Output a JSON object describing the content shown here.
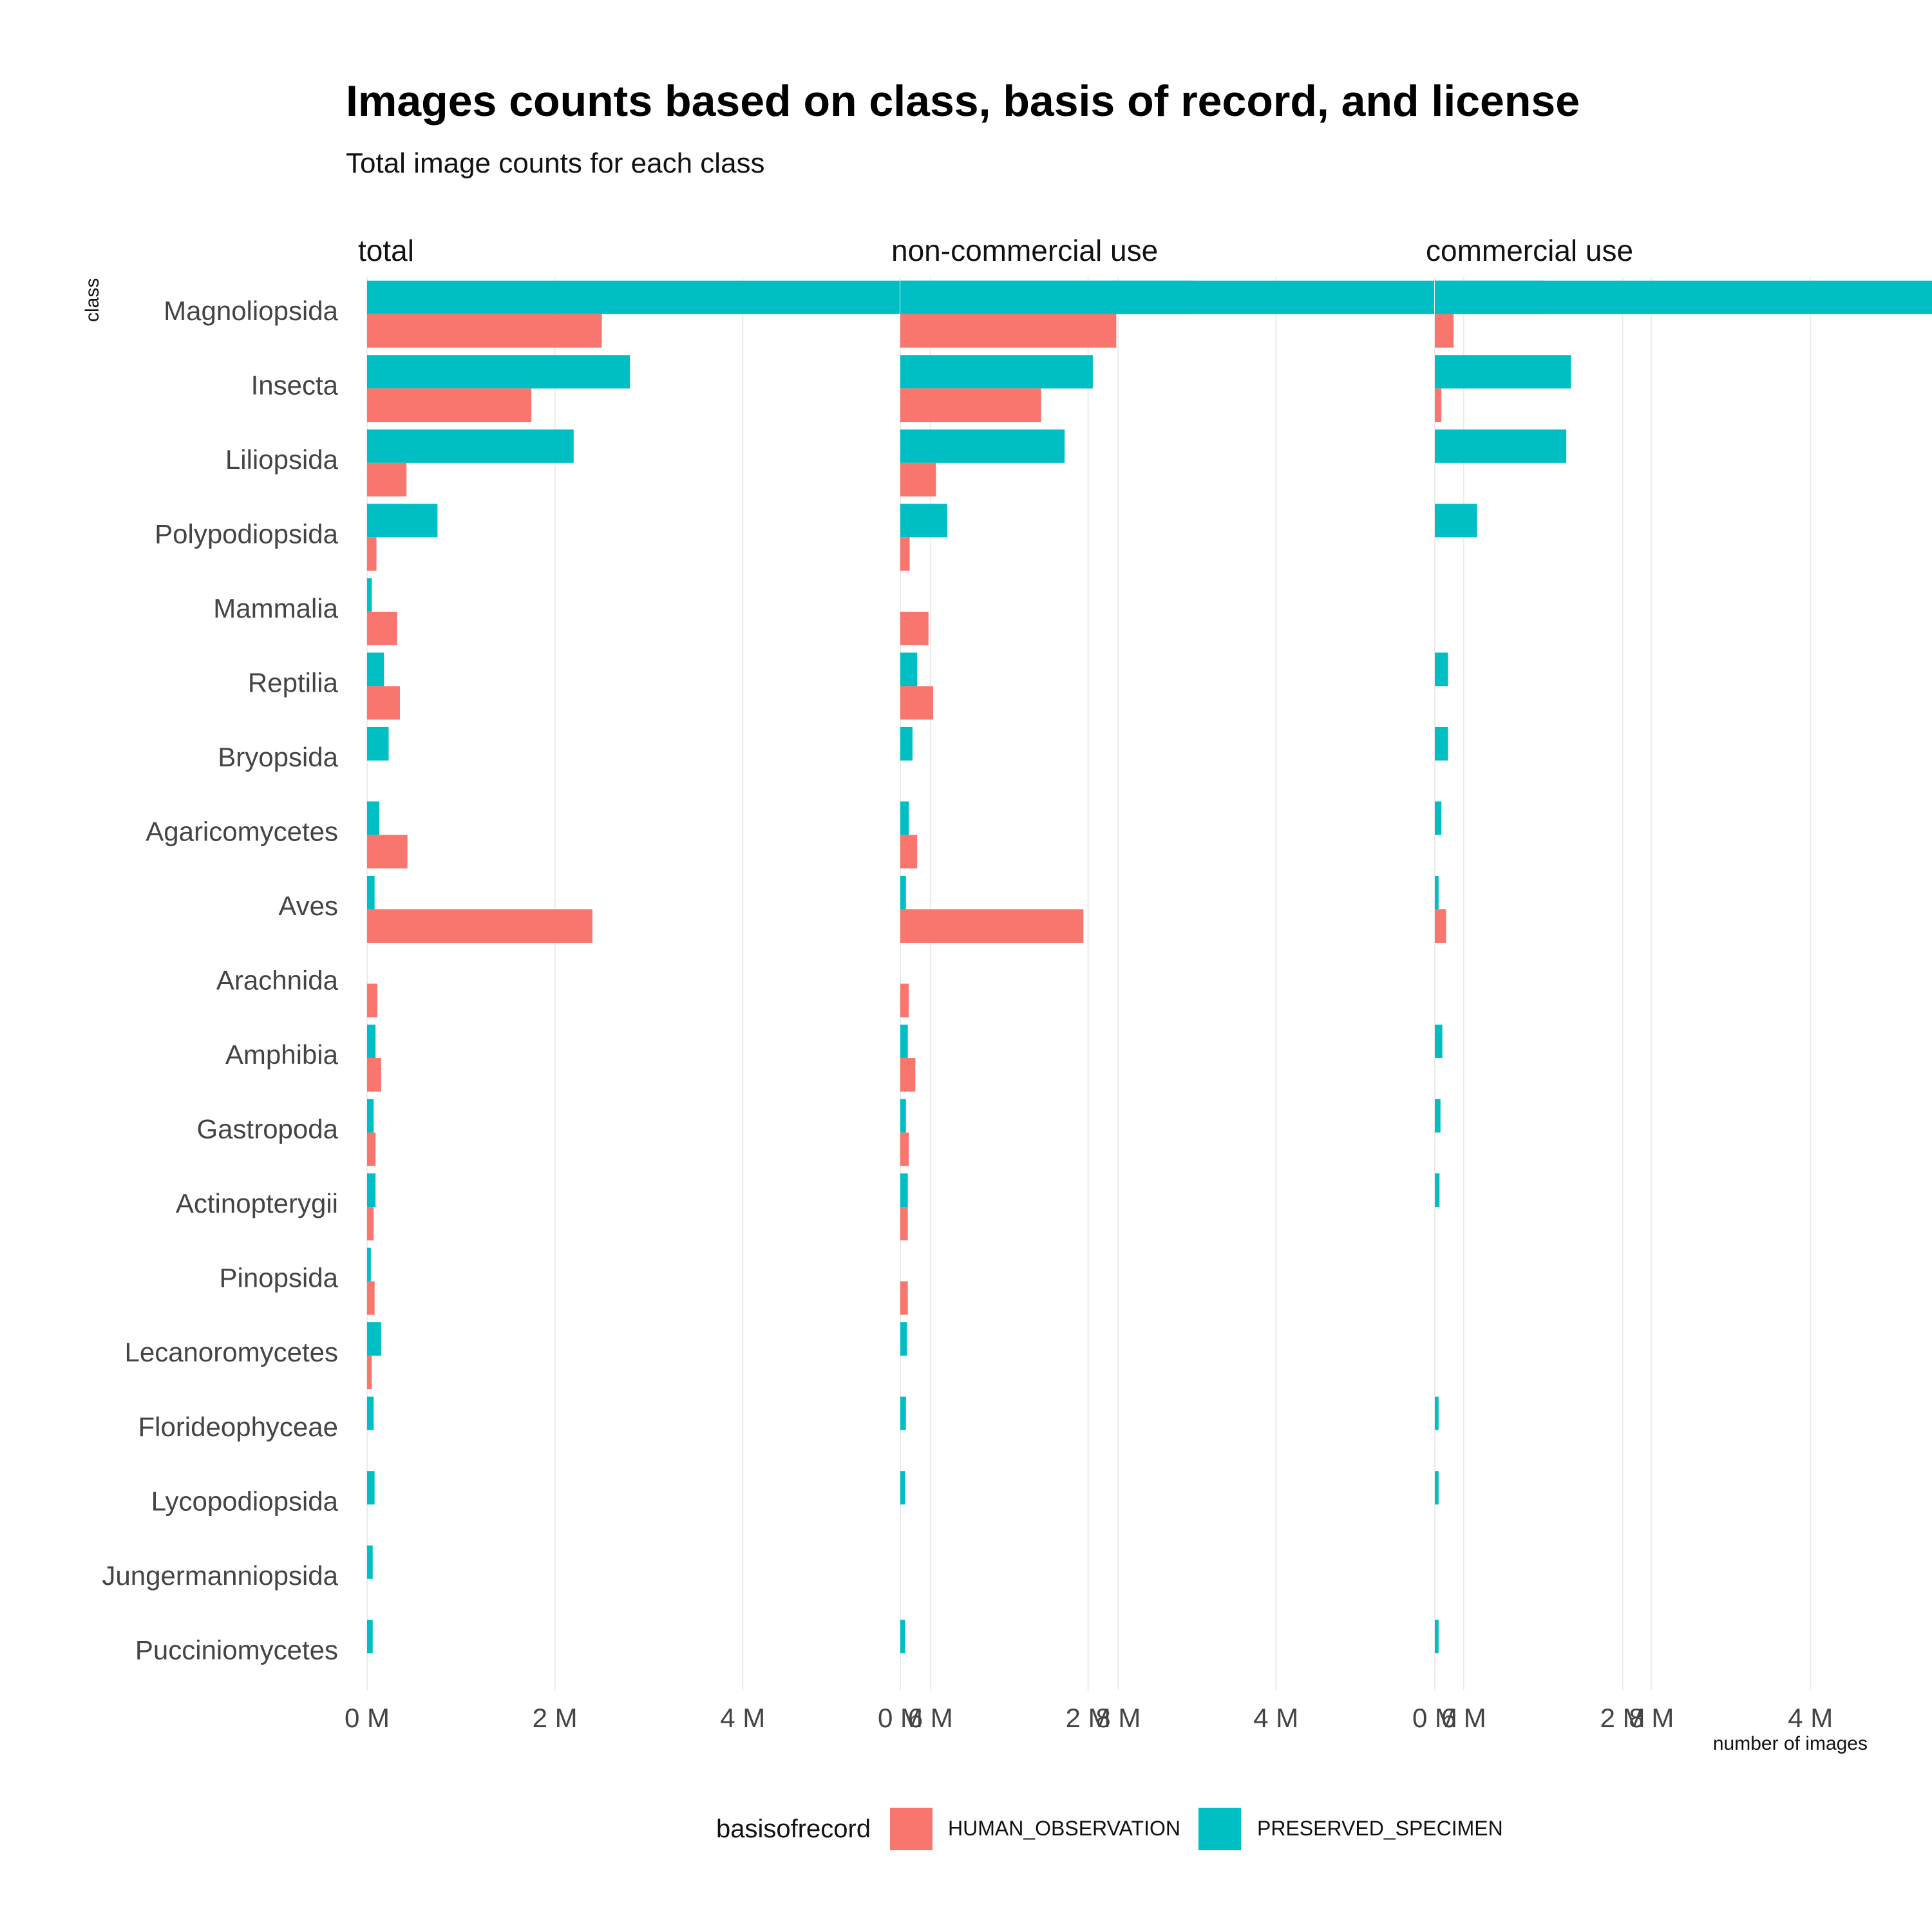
{
  "chart_data": {
    "type": "bar",
    "orientation": "horizontal",
    "title": "Images counts based on class, basis of record, and license",
    "subtitle": "Total image counts for each class",
    "ylabel": "class",
    "xlabel": "number of images",
    "legend_title": "basisofrecord",
    "legend_position": "bottom",
    "grid": true,
    "xlim": [
      0,
      9000000
    ],
    "x_ticks": [
      0,
      2000000,
      4000000,
      6000000,
      8000000
    ],
    "x_tick_labels": [
      "0 M",
      "2 M",
      "4 M",
      "6 M",
      "8 M"
    ],
    "categories": [
      "Magnoliopsida",
      "Insecta",
      "Liliopsida",
      "Polypodiopsida",
      "Mammalia",
      "Reptilia",
      "Bryopsida",
      "Agaricomycetes",
      "Aves",
      "Arachnida",
      "Amphibia",
      "Gastropoda",
      "Actinopterygii",
      "Pinopsida",
      "Lecanoromycetes",
      "Florideophyceae",
      "Lycopodiopsida",
      "Jungermanniopsida",
      "Pucciniomycetes"
    ],
    "series_colors": {
      "HUMAN_OBSERVATION": "#F8766D",
      "PRESERVED_SPECIMEN": "#00BFC4"
    },
    "facets": [
      {
        "label": "total",
        "series": [
          {
            "name": "PRESERVED_SPECIMEN",
            "values": [
              8800000,
              2800000,
              2200000,
              750000,
              50000,
              180000,
              230000,
              130000,
              80000,
              0,
              90000,
              70000,
              90000,
              40000,
              150000,
              70000,
              80000,
              60000,
              60000
            ]
          },
          {
            "name": "HUMAN_OBSERVATION",
            "values": [
              2500000,
              1750000,
              420000,
              100000,
              320000,
              350000,
              0,
              430000,
              2400000,
              110000,
              150000,
              90000,
              70000,
              80000,
              50000,
              0,
              0,
              0,
              0
            ]
          }
        ]
      },
      {
        "label": "non-commercial use",
        "series": [
          {
            "name": "PRESERVED_SPECIMEN",
            "values": [
              6850000,
              2050000,
              1750000,
              500000,
              0,
              180000,
              130000,
              90000,
              60000,
              0,
              80000,
              60000,
              80000,
              0,
              70000,
              60000,
              50000,
              0,
              50000
            ]
          },
          {
            "name": "HUMAN_OBSERVATION",
            "values": [
              2300000,
              1500000,
              380000,
              100000,
              300000,
              350000,
              0,
              180000,
              1950000,
              90000,
              160000,
              90000,
              80000,
              80000,
              0,
              0,
              0,
              0,
              0
            ]
          }
        ]
      },
      {
        "label": "commercial use",
        "series": [
          {
            "name": "PRESERVED_SPECIMEN",
            "values": [
              6000000,
              1450000,
              1400000,
              450000,
              0,
              140000,
              140000,
              70000,
              40000,
              0,
              80000,
              60000,
              50000,
              0,
              0,
              40000,
              40000,
              0,
              40000
            ]
          },
          {
            "name": "HUMAN_OBSERVATION",
            "values": [
              200000,
              70000,
              0,
              0,
              0,
              0,
              0,
              0,
              120000,
              0,
              0,
              0,
              0,
              0,
              0,
              0,
              0,
              0,
              0
            ]
          }
        ]
      }
    ]
  }
}
